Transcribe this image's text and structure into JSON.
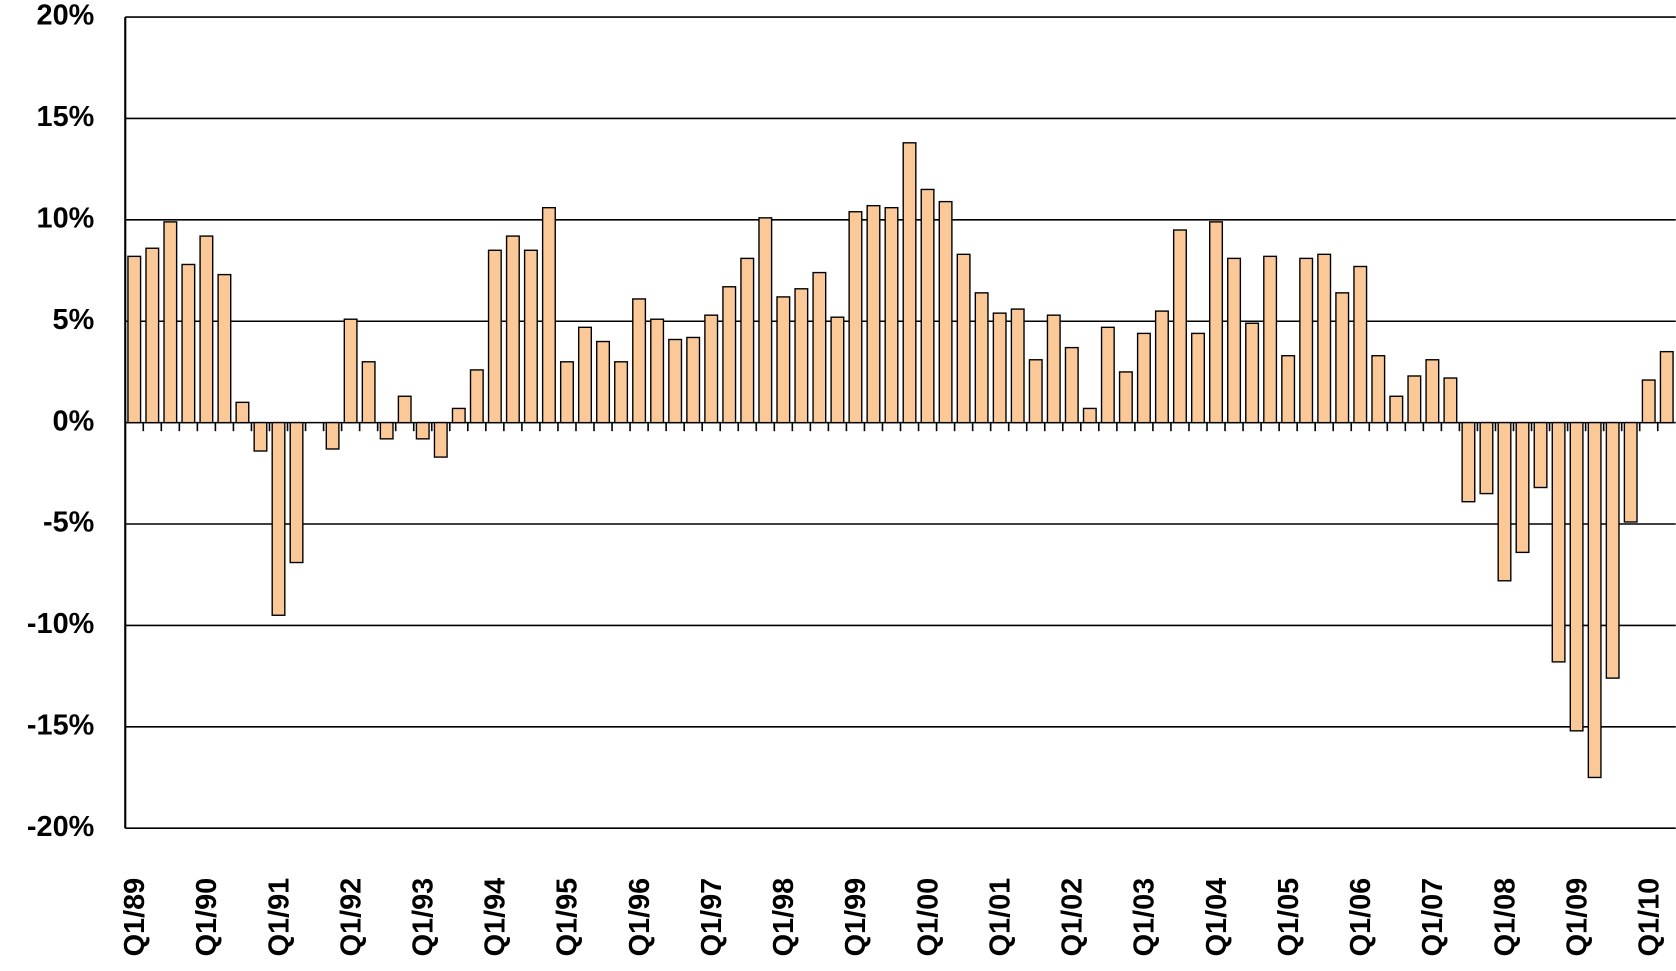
{
  "chart_data": {
    "type": "bar",
    "categories": [
      "Q1/89",
      null,
      null,
      null,
      "Q1/90",
      null,
      null,
      null,
      "Q1/91",
      null,
      null,
      null,
      "Q1/92",
      null,
      null,
      null,
      "Q1/93",
      null,
      null,
      null,
      "Q1/94",
      null,
      null,
      null,
      "Q1/95",
      null,
      null,
      null,
      "Q1/96",
      null,
      null,
      null,
      "Q1/97",
      null,
      null,
      null,
      "Q1/98",
      null,
      null,
      null,
      "Q1/99",
      null,
      null,
      null,
      "Q1/00",
      null,
      null,
      null,
      "Q1/01",
      null,
      null,
      null,
      "Q1/02",
      null,
      null,
      null,
      "Q1/03",
      null,
      null,
      null,
      "Q1/04",
      null,
      null,
      null,
      "Q1/05",
      null,
      null,
      null,
      "Q1/06",
      null,
      null,
      null,
      "Q1/07",
      null,
      null,
      null,
      "Q1/08",
      null,
      null,
      null,
      "Q1/09",
      null,
      null,
      null,
      "Q1/10",
      null
    ],
    "values": [
      8.2,
      8.6,
      9.9,
      7.8,
      9.2,
      7.3,
      1.0,
      -1.4,
      -9.5,
      -6.9,
      0,
      -1.3,
      5.1,
      3.0,
      -0.8,
      1.3,
      -0.8,
      -1.7,
      0.7,
      2.6,
      8.5,
      9.2,
      8.5,
      10.6,
      3.0,
      4.7,
      4.0,
      3.0,
      6.1,
      5.1,
      4.1,
      4.2,
      5.3,
      6.7,
      8.1,
      10.1,
      6.2,
      6.6,
      7.4,
      5.2,
      10.4,
      10.7,
      10.6,
      13.8,
      11.5,
      10.9,
      8.3,
      6.4,
      5.4,
      5.6,
      3.1,
      5.3,
      3.7,
      0.7,
      4.7,
      2.5,
      4.4,
      5.5,
      9.5,
      4.4,
      9.9,
      8.1,
      4.9,
      8.2,
      3.3,
      8.1,
      8.3,
      6.4,
      7.7,
      3.3,
      1.3,
      2.3,
      3.1,
      2.2,
      -3.9,
      -3.5,
      -7.8,
      -6.4,
      -3.2,
      -11.8,
      -15.2,
      -17.5,
      -12.6,
      -4.9,
      2.1,
      3.5
    ],
    "color": "#fbc998",
    "ylim": [
      -20,
      20
    ],
    "yticks": [
      {
        "value": -20,
        "label": "-20%"
      },
      {
        "value": -15,
        "label": "-15%"
      },
      {
        "value": -10,
        "label": "-10%"
      },
      {
        "value": -5,
        "label": "-5%"
      },
      {
        "value": 0,
        "label": "0%"
      },
      {
        "value": 5,
        "label": "5%"
      },
      {
        "value": 10,
        "label": "10%"
      },
      {
        "value": 15,
        "label": "15%"
      },
      {
        "value": 20,
        "label": "20%"
      }
    ],
    "grid": true
  }
}
